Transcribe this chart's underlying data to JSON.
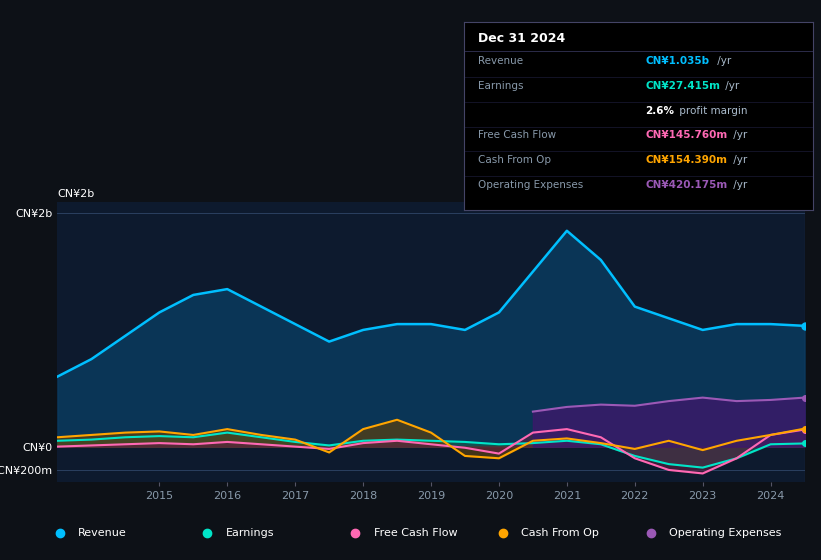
{
  "bg_color": "#0d1117",
  "chart_bg": "#0d1a2e",
  "years": [
    2013.5,
    2014,
    2014.5,
    2015,
    2015.5,
    2016,
    2016.5,
    2017,
    2017.5,
    2018,
    2018.5,
    2019,
    2019.5,
    2020,
    2020.5,
    2021,
    2021.5,
    2022,
    2022.5,
    2023,
    2023.5,
    2024,
    2024.5
  ],
  "revenue": [
    600,
    750,
    950,
    1150,
    1300,
    1350,
    1200,
    1050,
    900,
    1000,
    1050,
    1050,
    1000,
    1150,
    1500,
    1850,
    1600,
    1200,
    1100,
    1000,
    1050,
    1050,
    1035
  ],
  "earnings": [
    50,
    60,
    80,
    90,
    80,
    120,
    80,
    40,
    10,
    50,
    60,
    50,
    40,
    20,
    30,
    50,
    20,
    -80,
    -150,
    -180,
    -100,
    20,
    27
  ],
  "free_cash_flow": [
    0,
    10,
    20,
    30,
    20,
    40,
    20,
    0,
    -20,
    30,
    50,
    20,
    -10,
    -60,
    120,
    150,
    80,
    -100,
    -200,
    -230,
    -100,
    100,
    146
  ],
  "cash_from_op": [
    80,
    100,
    120,
    130,
    100,
    150,
    100,
    60,
    -50,
    150,
    230,
    120,
    -80,
    -100,
    50,
    70,
    30,
    -20,
    50,
    -30,
    50,
    100,
    154
  ],
  "op_expenses": [
    null,
    null,
    null,
    null,
    null,
    null,
    null,
    null,
    null,
    null,
    null,
    null,
    null,
    null,
    300,
    340,
    360,
    350,
    390,
    420,
    390,
    400,
    420
  ],
  "revenue_color": "#00bfff",
  "earnings_color": "#00e5c8",
  "fcf_color": "#ff69b4",
  "cashop_color": "#ffa500",
  "opex_color": "#9b59b6",
  "revenue_fill": "#0a3a5e",
  "earnings_fill": "#1a5a50",
  "fcf_fill": "#5a2040",
  "cashop_fill": "#5a4010",
  "opex_fill": "#3a1a6a",
  "ylim_min": -300,
  "ylim_max": 2100,
  "yticks": [
    -200,
    0,
    2000
  ],
  "ytick_labels": [
    "-CN¥200m",
    "CN¥0",
    "CN¥2b"
  ],
  "xlabel_years": [
    2015,
    2016,
    2017,
    2018,
    2019,
    2020,
    2021,
    2022,
    2023,
    2024
  ],
  "tooltip_title": "Dec 31 2024",
  "tooltip_rows": [
    [
      "Revenue",
      "CN¥1.035b",
      " /yr",
      "#00bfff"
    ],
    [
      "Earnings",
      "CN¥27.415m",
      " /yr",
      "#00e5c8"
    ],
    [
      "",
      "2.6%",
      " profit margin",
      "white"
    ],
    [
      "Free Cash Flow",
      "CN¥145.760m",
      " /yr",
      "#ff69b4"
    ],
    [
      "Cash From Op",
      "CN¥154.390m",
      " /yr",
      "#ffa500"
    ],
    [
      "Operating Expenses",
      "CN¥420.175m",
      " /yr",
      "#9b59b6"
    ]
  ],
  "legend_items": [
    [
      "Revenue",
      "#00bfff"
    ],
    [
      "Earnings",
      "#00e5c8"
    ],
    [
      "Free Cash Flow",
      "#ff69b4"
    ],
    [
      "Cash From Op",
      "#ffa500"
    ],
    [
      "Operating Expenses",
      "#9b59b6"
    ]
  ]
}
